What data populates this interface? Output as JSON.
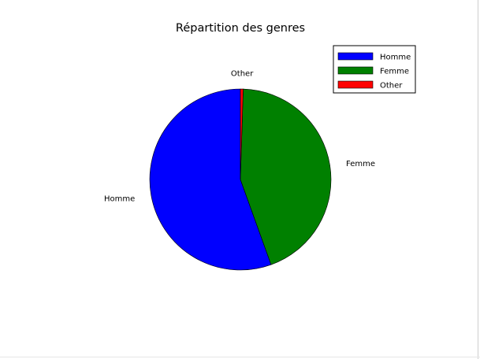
{
  "chart_data": {
    "type": "pie",
    "title": "Répartition des genres",
    "slices": [
      {
        "label": "Homme",
        "value": 55.5,
        "color": "#0000ff"
      },
      {
        "label": "Femme",
        "value": 44.0,
        "color": "#008000"
      },
      {
        "label": "Other",
        "value": 0.5,
        "color": "#ff0000"
      }
    ],
    "start_angle_deg": 90,
    "direction": "counterclockwise",
    "legend": {
      "position": "top-right",
      "entries": [
        "Homme",
        "Femme",
        "Other"
      ]
    }
  }
}
